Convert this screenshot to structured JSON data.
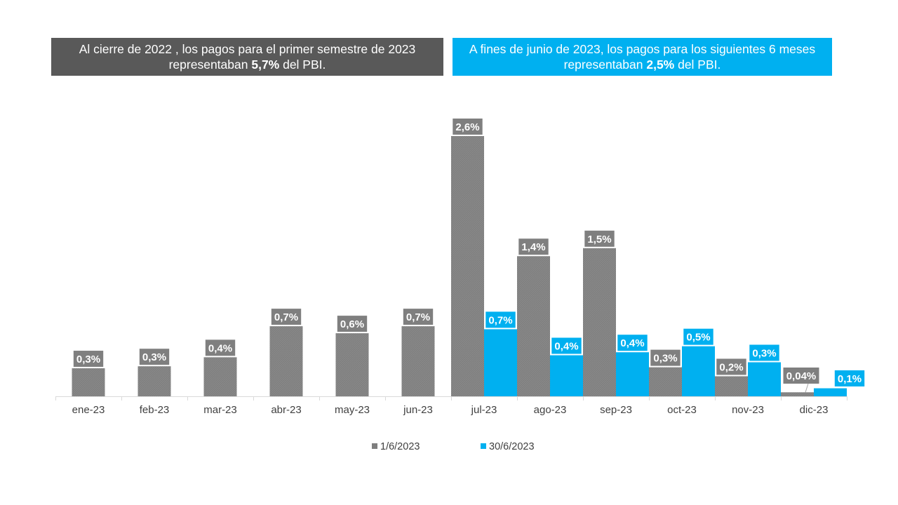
{
  "banners": {
    "left": {
      "line1": "Al cierre de 2022 , los pagos para el primer semestre de 2023",
      "line2_pre": "representaban ",
      "line2_bold": "5,7%",
      "line2_post": " del PBI.",
      "color": "#595959"
    },
    "right": {
      "line1": "A fines de junio de 2023, los pagos para los siguientes 6 meses",
      "line2_pre": "representaban ",
      "line2_bold": "2,5%",
      "line2_post": " del PBI.",
      "color": "#00B0F0"
    }
  },
  "chart_data": {
    "type": "bar",
    "title": "",
    "xlabel": "",
    "ylabel": "",
    "ylim": [
      0,
      2.6
    ],
    "grid": false,
    "legend_position": "bottom",
    "categories": [
      "ene-23",
      "feb-23",
      "mar-23",
      "abr-23",
      "may-23",
      "jun-23",
      "jul-23",
      "ago-23",
      "sep-23",
      "oct-23",
      "nov-23",
      "dic-23"
    ],
    "series": [
      {
        "name": "1/6/2023",
        "color": "#7F7F7F",
        "values": [
          0.28,
          0.3,
          0.39,
          0.7,
          0.63,
          0.7,
          2.6,
          1.4,
          1.48,
          0.29,
          0.2,
          0.04
        ],
        "labels": [
          "0,3%",
          "0,3%",
          "0,4%",
          "0,7%",
          "0,6%",
          "0,7%",
          "2,6%",
          "1,4%",
          "1,5%",
          "0,3%",
          "0,2%",
          "0,04%"
        ]
      },
      {
        "name": "30/6/2023",
        "color": "#00B0F0",
        "values": [
          null,
          null,
          null,
          null,
          null,
          null,
          0.67,
          0.41,
          0.44,
          0.5,
          0.34,
          0.08
        ],
        "labels": [
          null,
          null,
          null,
          null,
          null,
          null,
          "0,7%",
          "0,4%",
          "0,4%",
          "0,5%",
          "0,3%",
          "0,1%"
        ]
      }
    ]
  }
}
